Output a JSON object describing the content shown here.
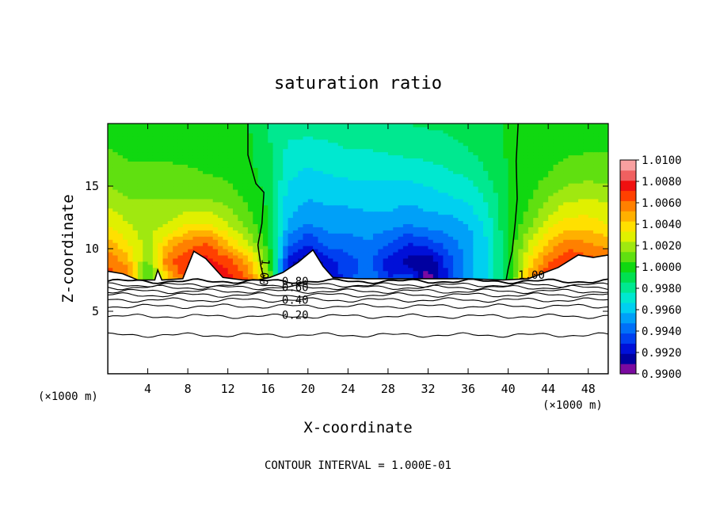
{
  "chart_data": {
    "type": "heatmap",
    "title": "saturation ratio",
    "xlabel": "X-coordinate",
    "ylabel": "Z-coordinate",
    "x_unit": "(×1000 m)",
    "y_unit": "(×1000 m)",
    "xlim": [
      0,
      50
    ],
    "ylim": [
      0,
      20
    ],
    "x_ticks": [
      4,
      8,
      12,
      16,
      20,
      24,
      28,
      32,
      36,
      40,
      44,
      48
    ],
    "y_ticks": [
      5,
      10,
      15
    ],
    "footer": "CONTOUR INTERVAL = 1.000E-01",
    "colorbar": {
      "labels": [
        "1.0100",
        "1.0080",
        "1.0060",
        "1.0040",
        "1.0020",
        "1.0000",
        "0.9980",
        "0.9960",
        "0.9940",
        "0.9920",
        "0.9900"
      ],
      "levels": [
        0.99,
        0.991,
        0.992,
        0.993,
        0.994,
        0.995,
        0.996,
        0.997,
        0.998,
        0.999,
        1.0,
        1.001,
        1.002,
        1.003,
        1.004,
        1.005,
        1.006,
        1.007,
        1.008,
        1.009,
        1.01
      ],
      "colors": [
        "#7a0aa0",
        "#0000a0",
        "#0010d8",
        "#0040f0",
        "#0070f8",
        "#00a0f8",
        "#00d0f0",
        "#00e8d0",
        "#00e890",
        "#00e050",
        "#10d810",
        "#60e010",
        "#a0e810",
        "#e0f000",
        "#ffe000",
        "#ffb000",
        "#ff8000",
        "#ff4000",
        "#f01010",
        "#f06060",
        "#f8a0a0"
      ]
    },
    "contour_labels": [
      {
        "text": "1.00",
        "x": 15.4,
        "z": 9.2
      },
      {
        "text": "1.00",
        "x": 41.0,
        "z": 7.6
      },
      {
        "text": "0.80",
        "x": 17.4,
        "z": 7.1
      },
      {
        "text": "0.60",
        "x": 17.4,
        "z": 6.6
      },
      {
        "text": "0.40",
        "x": 17.4,
        "z": 5.6
      },
      {
        "text": "0.20",
        "x": 17.4,
        "z": 4.4
      }
    ],
    "subsaturated_contours": [
      {
        "level": 0.9,
        "z": 7.4
      },
      {
        "level": 0.8,
        "z": 7.1
      },
      {
        "level": 0.7,
        "z": 6.9
      },
      {
        "level": 0.6,
        "z": 6.6
      },
      {
        "level": 0.5,
        "z": 6.3
      },
      {
        "level": 0.4,
        "z": 5.9
      },
      {
        "level": 0.3,
        "z": 5.4
      },
      {
        "level": 0.2,
        "z": 4.6
      },
      {
        "level": 0.1,
        "z": 3.1
      }
    ],
    "saturation_line_1": [
      [
        14.0,
        20.0
      ],
      [
        14.0,
        17.5
      ],
      [
        14.8,
        15.2
      ],
      [
        15.6,
        14.5
      ],
      [
        15.4,
        12.0
      ],
      [
        15.0,
        10.3
      ],
      [
        15.3,
        8.6
      ],
      [
        15.6,
        7.6
      ]
    ],
    "saturation_line_2": [
      [
        41.0,
        20.0
      ],
      [
        40.8,
        17.0
      ],
      [
        40.9,
        14.0
      ],
      [
        40.7,
        12.0
      ],
      [
        40.4,
        9.8
      ],
      [
        40.0,
        8.4
      ],
      [
        39.8,
        7.5
      ]
    ],
    "field_samples": {
      "x": [
        0,
        2,
        4,
        6,
        8,
        10,
        12,
        14,
        16,
        18,
        20,
        22,
        24,
        26,
        28,
        30,
        32,
        34,
        36,
        38,
        40,
        42,
        44,
        46,
        48,
        50
      ],
      "z": [
        7.5,
        9,
        10.5,
        12,
        14,
        16,
        18,
        20
      ],
      "s": [
        [
          1.0075,
          1.007,
          1.0005,
          1.0045,
          1.008,
          1.009,
          1.0085,
          1.007,
          1.003,
          0.9915,
          0.9905,
          0.992,
          0.9935,
          0.995,
          0.993,
          0.994,
          0.9905,
          0.993,
          0.9955,
          0.997,
          0.9998,
          1.006,
          1.008,
          1.0085,
          1.008,
          1.0075
        ],
        [
          1.007,
          1.0055,
          1.0015,
          1.007,
          1.008,
          1.0085,
          1.0075,
          1.0055,
          1.0015,
          0.9925,
          0.991,
          0.9925,
          0.9935,
          0.9945,
          0.9925,
          0.9915,
          0.991,
          0.9935,
          0.9955,
          0.997,
          0.9998,
          1.004,
          1.007,
          1.008,
          1.0075,
          1.007
        ],
        [
          1.0055,
          1.004,
          1.0025,
          1.005,
          1.0065,
          1.007,
          1.005,
          1.003,
          1.0005,
          0.9945,
          0.993,
          0.9945,
          0.9945,
          0.995,
          0.994,
          0.993,
          0.9935,
          0.9945,
          0.9955,
          0.997,
          0.9999,
          1.003,
          1.005,
          1.0065,
          1.006,
          1.0055
        ],
        [
          1.004,
          1.003,
          1.0025,
          1.003,
          1.004,
          1.004,
          1.003,
          1.0015,
          1.0,
          0.996,
          0.995,
          0.9955,
          0.9955,
          0.9955,
          0.9955,
          0.995,
          0.9955,
          0.9955,
          0.996,
          0.9975,
          1.0,
          1.0015,
          1.0035,
          1.0045,
          1.0045,
          1.004
        ],
        [
          1.0025,
          1.002,
          1.002,
          1.002,
          1.002,
          1.002,
          1.0015,
          1.0008,
          0.9998,
          0.9965,
          0.996,
          0.9962,
          0.9962,
          0.9965,
          0.9965,
          0.9962,
          0.9965,
          0.9968,
          0.9972,
          0.9982,
          1.0,
          1.0008,
          1.002,
          1.0028,
          1.003,
          1.0028
        ],
        [
          1.0015,
          1.0012,
          1.0012,
          1.0012,
          1.0012,
          1.001,
          1.0008,
          1.0004,
          0.9995,
          0.9972,
          0.9968,
          0.997,
          0.9972,
          0.9972,
          0.9972,
          0.9972,
          0.9975,
          0.9978,
          0.9982,
          0.999,
          1.0001,
          1.0004,
          1.001,
          1.0015,
          1.0016,
          1.0015
        ],
        [
          1.001,
          1.0008,
          1.0008,
          1.0008,
          1.0006,
          1.0005,
          1.0004,
          1.0002,
          0.9992,
          0.9978,
          0.9976,
          0.9978,
          0.998,
          0.998,
          0.9982,
          0.9984,
          0.9985,
          0.9987,
          0.999,
          0.9995,
          1.0001,
          1.0002,
          1.0006,
          1.0008,
          1.0009,
          1.0009
        ],
        [
          1.0006,
          1.0005,
          1.0005,
          1.0005,
          1.0004,
          1.0003,
          1.0002,
          1.0001,
          0.999,
          0.9985,
          0.9984,
          0.9985,
          0.9986,
          0.9987,
          0.9988,
          0.999,
          0.9991,
          0.9992,
          0.9994,
          0.9997,
          1.0001,
          1.0001,
          1.0004,
          1.0005,
          1.0005,
          1.0005
        ]
      ]
    },
    "boundary_top_z": [
      [
        0,
        8.2
      ],
      [
        1.5,
        8.0
      ],
      [
        3.0,
        7.5
      ],
      [
        4.7,
        7.5
      ],
      [
        5.0,
        8.3
      ],
      [
        5.4,
        7.5
      ],
      [
        7.5,
        7.6
      ],
      [
        8.6,
        9.8
      ],
      [
        9.8,
        9.2
      ],
      [
        11.5,
        7.7
      ],
      [
        13.5,
        7.5
      ],
      [
        15.0,
        7.5
      ],
      [
        16.2,
        7.7
      ],
      [
        17.5,
        8.1
      ],
      [
        19.0,
        8.9
      ],
      [
        20.5,
        9.9
      ],
      [
        21.5,
        8.6
      ],
      [
        22.5,
        7.7
      ],
      [
        25.0,
        7.6
      ],
      [
        28.0,
        7.6
      ],
      [
        31.0,
        7.6
      ],
      [
        33.0,
        7.6
      ],
      [
        36.0,
        7.6
      ],
      [
        39.5,
        7.5
      ],
      [
        42.0,
        7.6
      ],
      [
        45.0,
        8.5
      ],
      [
        47.0,
        9.5
      ],
      [
        48.5,
        9.3
      ],
      [
        50.0,
        9.5
      ]
    ]
  }
}
